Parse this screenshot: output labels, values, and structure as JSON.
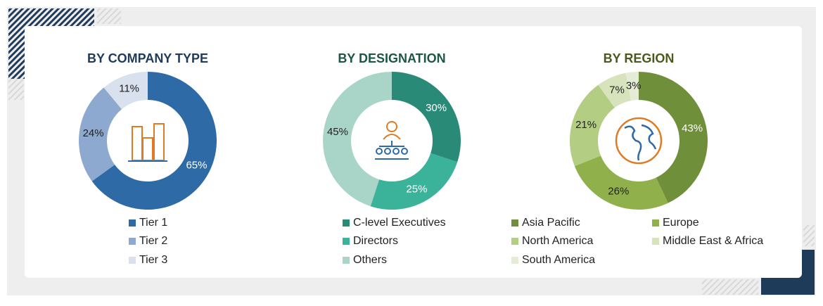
{
  "chart_data": [
    {
      "type": "pie",
      "title": "BY COMPANY TYPE",
      "title_color": "#1f3b5a",
      "categories": [
        "Tier 1",
        "Tier 2",
        "Tier 3"
      ],
      "values": [
        65,
        24,
        11
      ],
      "value_labels": [
        "65%",
        "24%",
        "11%"
      ],
      "colors": [
        "#2e6aa6",
        "#8ea9cf",
        "#d9e1ee"
      ]
    },
    {
      "type": "pie",
      "title": "BY DESIGNATION",
      "title_color": "#1d5547",
      "categories": [
        "C-level Executives",
        "Directors",
        "Others"
      ],
      "values": [
        30,
        25,
        45
      ],
      "value_labels": [
        "30%",
        "25%",
        "45%"
      ],
      "colors": [
        "#2a8a78",
        "#3bb39a",
        "#a8d5c8"
      ]
    },
    {
      "type": "pie",
      "title": "BY REGION",
      "title_color": "#4a5a1f",
      "categories": [
        "Asia Pacific",
        "Europe",
        "North America",
        "Middle East & Africa",
        "South America"
      ],
      "values": [
        43,
        26,
        21,
        7,
        3
      ],
      "value_labels": [
        "43%",
        "26%",
        "21%",
        "7%",
        "3%"
      ],
      "colors": [
        "#6f8f3a",
        "#8fb04a",
        "#b3cd83",
        "#d6e3bd",
        "#e5ecd6"
      ]
    }
  ]
}
